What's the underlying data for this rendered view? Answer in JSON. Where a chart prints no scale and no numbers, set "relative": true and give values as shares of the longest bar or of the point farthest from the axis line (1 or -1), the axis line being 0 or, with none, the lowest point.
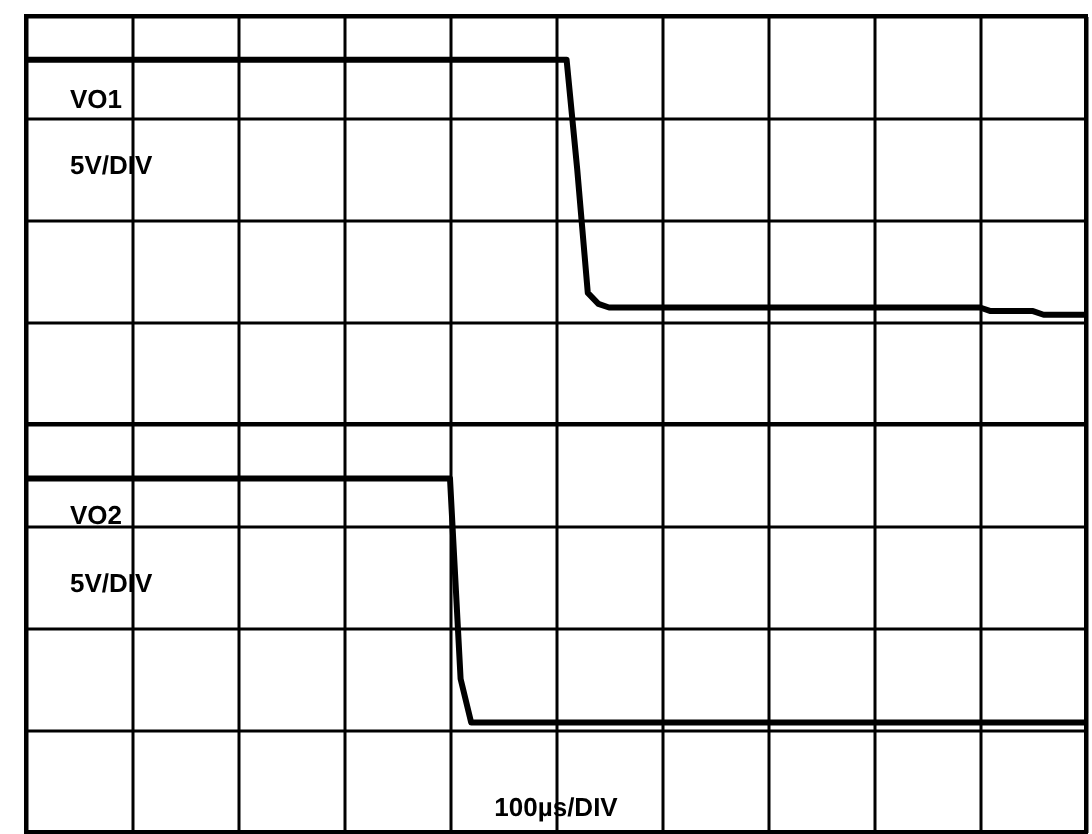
{
  "chart_data": {
    "type": "line",
    "relative": true,
    "grid": true,
    "categories": [
      null,
      null,
      null,
      null,
      null,
      null,
      null,
      null,
      null,
      null,
      null,
      null,
      null,
      null,
      null,
      null,
      null,
      null,
      null,
      null,
      null,
      null,
      null,
      null,
      null,
      null,
      null,
      null,
      null,
      null,
      null,
      null,
      null,
      null,
      null,
      null,
      null,
      null,
      null,
      null,
      null,
      null,
      null,
      null,
      null,
      null,
      null,
      null,
      null,
      null,
      null,
      null,
      null,
      null,
      null,
      null,
      null,
      null,
      null,
      null,
      null,
      null,
      null,
      null,
      null,
      null,
      null,
      null,
      null,
      null,
      null,
      null,
      null,
      null,
      null,
      null,
      null,
      null,
      null,
      null,
      null,
      null,
      null,
      null,
      null,
      null,
      null,
      null,
      null,
      null,
      null,
      null,
      null,
      null,
      null,
      null,
      null,
      null,
      null,
      null,
      null
    ],
    "series": [
      {
        "name": "VO1",
        "color": "#000000",
        "values": [
          1,
          1,
          1,
          1,
          1,
          1,
          1,
          1,
          1,
          1,
          1,
          1,
          1,
          1,
          1,
          1,
          1,
          1,
          1,
          1,
          1,
          1,
          1,
          1,
          1,
          1,
          1,
          1,
          1,
          1,
          1,
          1,
          1,
          1,
          1,
          1,
          1,
          1,
          1,
          1,
          1,
          1,
          1,
          1,
          1,
          1,
          1,
          1,
          1,
          1,
          1,
          1,
          0.7,
          0.36,
          0.33,
          0.32,
          0.32,
          0.32,
          0.32,
          0.32,
          0.32,
          0.32,
          0.32,
          0.32,
          0.32,
          0.32,
          0.32,
          0.32,
          0.32,
          0.32,
          0.32,
          0.32,
          0.32,
          0.32,
          0.32,
          0.32,
          0.32,
          0.32,
          0.32,
          0.32,
          0.32,
          0.32,
          0.32,
          0.32,
          0.32,
          0.32,
          0.32,
          0.32,
          0.32,
          0.32,
          0.32,
          0.31,
          0.31,
          0.31,
          0.31,
          0.31,
          0.3,
          0.3,
          0.3,
          0.3,
          0.3
        ]
      },
      {
        "name": "VO2",
        "color": "#000000",
        "values": [
          -0.15,
          -0.15,
          -0.15,
          -0.15,
          -0.15,
          -0.15,
          -0.15,
          -0.15,
          -0.15,
          -0.15,
          -0.15,
          -0.15,
          -0.15,
          -0.15,
          -0.15,
          -0.15,
          -0.15,
          -0.15,
          -0.15,
          -0.15,
          -0.15,
          -0.15,
          -0.15,
          -0.15,
          -0.15,
          -0.15,
          -0.15,
          -0.15,
          -0.15,
          -0.15,
          -0.15,
          -0.15,
          -0.15,
          -0.15,
          -0.15,
          -0.15,
          -0.15,
          -0.15,
          -0.15,
          -0.15,
          -0.15,
          -0.7,
          -0.82,
          -0.82,
          -0.82,
          -0.82,
          -0.82,
          -0.82,
          -0.82,
          -0.82,
          -0.82,
          -0.82,
          -0.82,
          -0.82,
          -0.82,
          -0.82,
          -0.82,
          -0.82,
          -0.82,
          -0.82,
          -0.82,
          -0.82,
          -0.82,
          -0.82,
          -0.82,
          -0.82,
          -0.82,
          -0.82,
          -0.82,
          -0.82,
          -0.82,
          -0.82,
          -0.82,
          -0.82,
          -0.82,
          -0.82,
          -0.82,
          -0.82,
          -0.82,
          -0.82,
          -0.82,
          -0.82,
          -0.82,
          -0.82,
          -0.82,
          -0.82,
          -0.82,
          -0.82,
          -0.82,
          -0.82,
          -0.82,
          -0.82,
          -0.82,
          -0.82,
          -0.82,
          -0.82,
          -0.82,
          -0.82,
          -0.82,
          -0.82,
          -0.82
        ]
      }
    ],
    "annotations": [
      "5V/DIV",
      "5V/DIV",
      "100µs/DIV"
    ]
  }
}
